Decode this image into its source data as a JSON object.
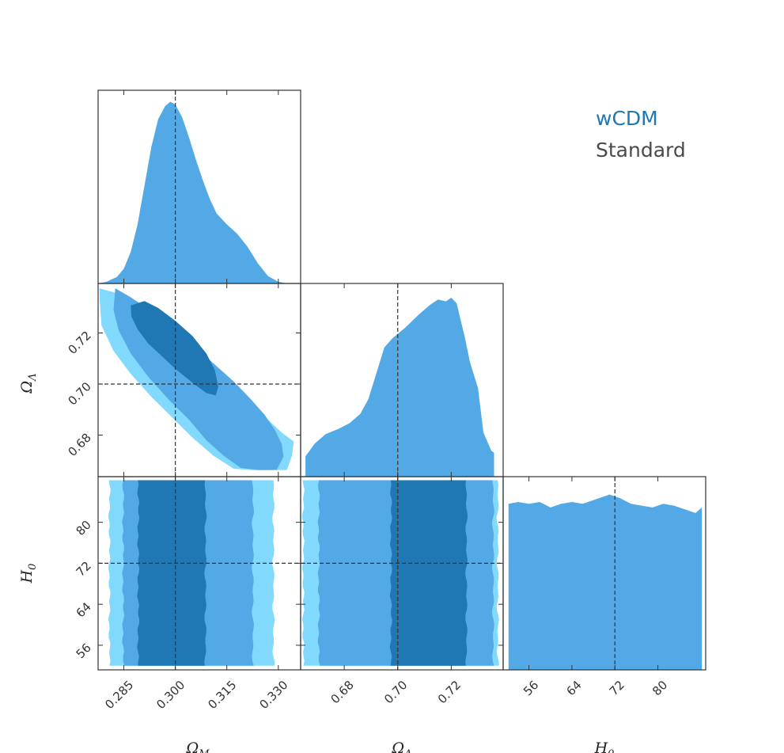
{
  "chart_data": {
    "type": "corner",
    "parameters": [
      {
        "key": "om",
        "label": "Ω",
        "sub": "M",
        "range": [
          0.2775,
          0.3365
        ],
        "ticks": [
          0.285,
          0.3,
          0.315,
          0.33
        ],
        "tick_labels": [
          "0.285",
          "0.300",
          "0.315",
          "0.330"
        ],
        "truth": 0.3
      },
      {
        "key": "ol",
        "label": "Ω",
        "sub": "Λ",
        "range": [
          0.6637,
          0.7394
        ],
        "ticks": [
          0.68,
          0.7,
          0.72
        ],
        "tick_labels": [
          "0.68",
          "0.70",
          "0.72"
        ],
        "truth": 0.7
      },
      {
        "key": "h0",
        "label": "H",
        "sub": "0",
        "range": [
          51.2,
          88.9
        ],
        "ticks": [
          56,
          64,
          72,
          80
        ],
        "tick_labels": [
          "56",
          "64",
          "72",
          "80"
        ],
        "truth": 72
      }
    ],
    "legend": [
      {
        "name": "wCDM",
        "color": "#1f77b4"
      },
      {
        "name": "Standard",
        "color": "#4a4a4a"
      }
    ],
    "colors": {
      "dark": "#1f77b4",
      "mid": "#52a9e5",
      "light": "#82d9fe"
    },
    "marginals": {
      "om": [
        [
          0.2779,
          0.0
        ],
        [
          0.28,
          0.01
        ],
        [
          0.283,
          0.035
        ],
        [
          0.285,
          0.08
        ],
        [
          0.287,
          0.17
        ],
        [
          0.289,
          0.32
        ],
        [
          0.291,
          0.53
        ],
        [
          0.293,
          0.74
        ],
        [
          0.295,
          0.89
        ],
        [
          0.297,
          0.96
        ],
        [
          0.2985,
          0.985
        ],
        [
          0.3,
          0.97
        ],
        [
          0.302,
          0.9
        ],
        [
          0.304,
          0.79
        ],
        [
          0.306,
          0.67
        ],
        [
          0.308,
          0.56
        ],
        [
          0.31,
          0.46
        ],
        [
          0.312,
          0.38
        ],
        [
          0.315,
          0.32
        ],
        [
          0.318,
          0.27
        ],
        [
          0.321,
          0.2
        ],
        [
          0.324,
          0.11
        ],
        [
          0.327,
          0.04
        ],
        [
          0.33,
          0.01
        ],
        [
          0.3325,
          0.0
        ]
      ],
      "ol": [
        [
          0.6655,
          0.11
        ],
        [
          0.669,
          0.18
        ],
        [
          0.673,
          0.23
        ],
        [
          0.678,
          0.26
        ],
        [
          0.682,
          0.29
        ],
        [
          0.686,
          0.34
        ],
        [
          0.689,
          0.42
        ],
        [
          0.692,
          0.56
        ],
        [
          0.695,
          0.7
        ],
        [
          0.698,
          0.75
        ],
        [
          0.703,
          0.81
        ],
        [
          0.708,
          0.88
        ],
        [
          0.712,
          0.93
        ],
        [
          0.715,
          0.96
        ],
        [
          0.718,
          0.95
        ],
        [
          0.72,
          0.97
        ],
        [
          0.722,
          0.94
        ],
        [
          0.725,
          0.76
        ],
        [
          0.727,
          0.62
        ],
        [
          0.73,
          0.48
        ],
        [
          0.732,
          0.24
        ],
        [
          0.735,
          0.14
        ],
        [
          0.736,
          0.13
        ],
        [
          0.736,
          0.0
        ]
      ],
      "h0": [
        [
          52.2,
          0.9
        ],
        [
          54.0,
          0.91
        ],
        [
          56.0,
          0.9
        ],
        [
          58.0,
          0.91
        ],
        [
          60.0,
          0.88
        ],
        [
          62.0,
          0.9
        ],
        [
          64.0,
          0.91
        ],
        [
          66.0,
          0.9
        ],
        [
          68.0,
          0.92
        ],
        [
          71.0,
          0.95
        ],
        [
          73.0,
          0.93
        ],
        [
          75.0,
          0.9
        ],
        [
          77.0,
          0.89
        ],
        [
          79.0,
          0.88
        ],
        [
          81.0,
          0.9
        ],
        [
          83.0,
          0.89
        ],
        [
          85.0,
          0.87
        ],
        [
          87.0,
          0.85
        ],
        [
          88.2,
          0.88
        ]
      ]
    },
    "contours": {
      "ol_vs_om": [
        {
          "level": "light",
          "points": [
            [
              0.2779,
              0.7375
            ],
            [
              0.282,
              0.736
            ],
            [
              0.287,
              0.733
            ],
            [
              0.292,
              0.7285
            ],
            [
              0.297,
              0.723
            ],
            [
              0.302,
              0.717
            ],
            [
              0.307,
              0.711
            ],
            [
              0.312,
              0.705
            ],
            [
              0.317,
              0.699
            ],
            [
              0.322,
              0.692
            ],
            [
              0.327,
              0.686
            ],
            [
              0.331,
              0.681
            ],
            [
              0.3345,
              0.6775
            ],
            [
              0.334,
              0.672
            ],
            [
              0.3325,
              0.6663
            ],
            [
              0.327,
              0.6663
            ],
            [
              0.322,
              0.6663
            ],
            [
              0.317,
              0.6668
            ],
            [
              0.311,
              0.672
            ],
            [
              0.305,
              0.679
            ],
            [
              0.299,
              0.687
            ],
            [
              0.293,
              0.695
            ],
            [
              0.287,
              0.704
            ],
            [
              0.282,
              0.713
            ],
            [
              0.2785,
              0.723
            ],
            [
              0.278,
              0.732
            ]
          ]
        },
        {
          "level": "mid",
          "points": [
            [
              0.2825,
              0.7375
            ],
            [
              0.287,
              0.734
            ],
            [
              0.292,
              0.7295
            ],
            [
              0.297,
              0.724
            ],
            [
              0.302,
              0.719
            ],
            [
              0.307,
              0.713
            ],
            [
              0.312,
              0.707
            ],
            [
              0.317,
              0.701
            ],
            [
              0.322,
              0.694
            ],
            [
              0.326,
              0.688
            ],
            [
              0.329,
              0.682
            ],
            [
              0.331,
              0.6765
            ],
            [
              0.3315,
              0.6715
            ],
            [
              0.3295,
              0.6663
            ],
            [
              0.324,
              0.6663
            ],
            [
              0.319,
              0.6672
            ],
            [
              0.314,
              0.672
            ],
            [
              0.309,
              0.678
            ],
            [
              0.304,
              0.686
            ],
            [
              0.298,
              0.694
            ],
            [
              0.292,
              0.703
            ],
            [
              0.287,
              0.712
            ],
            [
              0.2835,
              0.721
            ],
            [
              0.282,
              0.729
            ]
          ]
        },
        {
          "level": "dark",
          "points": [
            [
              0.287,
              0.7308
            ],
            [
              0.291,
              0.7325
            ],
            [
              0.295,
              0.7298
            ],
            [
              0.3,
              0.7248
            ],
            [
              0.305,
              0.7188
            ],
            [
              0.309,
              0.712
            ],
            [
              0.3115,
              0.7055
            ],
            [
              0.3125,
              0.699
            ],
            [
              0.3118,
              0.6955
            ],
            [
              0.309,
              0.6965
            ],
            [
              0.305,
              0.7005
            ],
            [
              0.3,
              0.706
            ],
            [
              0.296,
              0.711
            ],
            [
              0.292,
              0.716
            ],
            [
              0.289,
              0.7215
            ],
            [
              0.2872,
              0.7265
            ]
          ]
        }
      ],
      "h0_vs_om": [
        {
          "level": "light",
          "x_bounds": [
            0.2808,
            0.3286
          ],
          "y_range": [
            52.0,
            88.2
          ]
        },
        {
          "level": "mid",
          "x_bounds": [
            0.2848,
            0.3226
          ],
          "y_range": [
            52.0,
            88.2
          ]
        },
        {
          "level": "dark",
          "x_bounds": [
            0.2892,
            0.3088
          ],
          "y_range": [
            52.0,
            88.2
          ]
        }
      ],
      "h0_vs_ol": [
        {
          "level": "light",
          "x_bounds": [
            0.6647,
            0.7374
          ],
          "y_range": [
            52.0,
            88.2
          ]
        },
        {
          "level": "mid",
          "x_bounds": [
            0.6705,
            0.7357
          ],
          "y_range": [
            52.0,
            88.2
          ]
        },
        {
          "level": "dark",
          "x_bounds": [
            0.6975,
            0.7257
          ],
          "y_range": [
            52.0,
            88.2
          ]
        }
      ]
    }
  }
}
